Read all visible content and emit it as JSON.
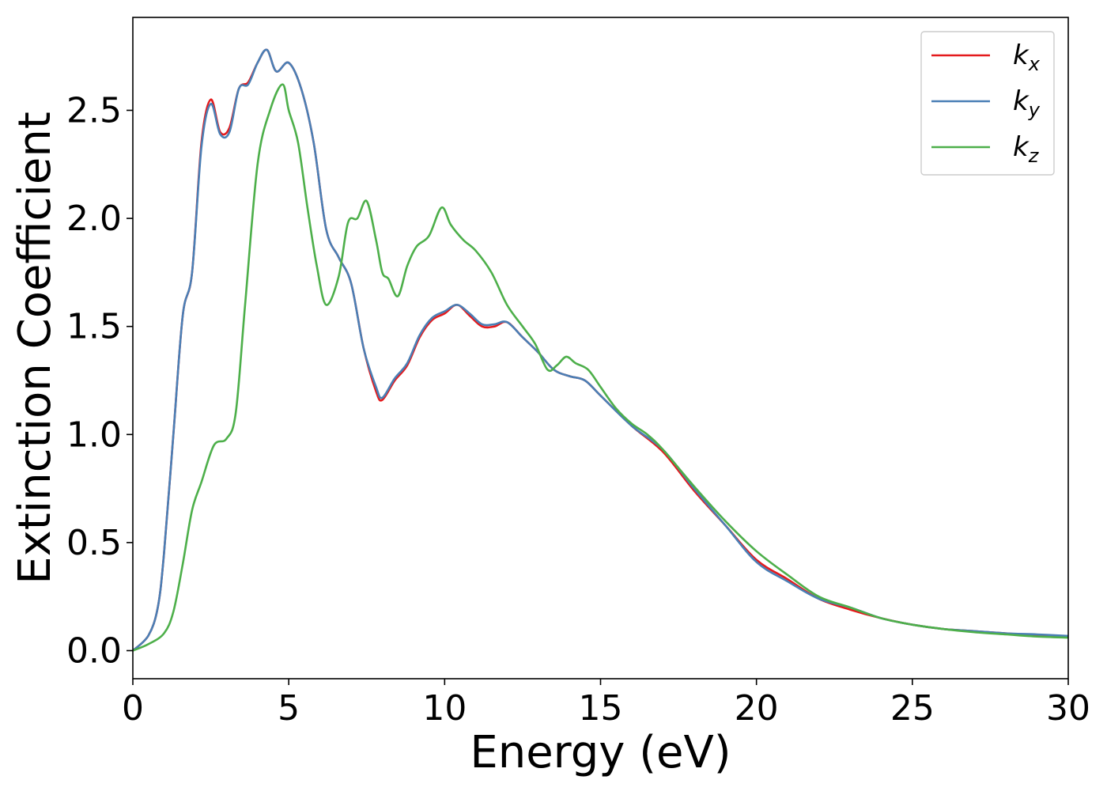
{
  "chart_data": {
    "type": "line",
    "title": "",
    "xlabel": "Energy (eV)",
    "ylabel": "Extinction Coefficient",
    "xlim": [
      0,
      30
    ],
    "ylim": [
      -0.13,
      2.93
    ],
    "xticks": [
      0,
      5,
      10,
      15,
      20,
      25,
      30
    ],
    "yticks": [
      0.0,
      0.5,
      1.0,
      1.5,
      2.0,
      2.5
    ],
    "grid": false,
    "legend_position": "top-right",
    "series": [
      {
        "name": "k",
        "subscript": "x",
        "color": "#e41a1c",
        "x": [
          0,
          0.5,
          0.8,
          1.0,
          1.3,
          1.6,
          1.9,
          2.2,
          2.5,
          2.8,
          3.1,
          3.4,
          3.7,
          4.0,
          4.3,
          4.6,
          5.0,
          5.4,
          5.8,
          6.2,
          6.6,
          7.0,
          7.4,
          7.8,
          8.0,
          8.4,
          8.8,
          9.2,
          9.6,
          10.0,
          10.4,
          10.8,
          11.2,
          11.6,
          12.0,
          12.5,
          13.0,
          13.5,
          14.0,
          14.5,
          15.0,
          16.0,
          17.0,
          18.0,
          19.0,
          20.0,
          21.0,
          22.0,
          23.0,
          24.0,
          25.0,
          26.0,
          27.0,
          28.0,
          29.0,
          30.0
        ],
        "y": [
          0.0,
          0.07,
          0.2,
          0.45,
          1.0,
          1.55,
          1.75,
          2.35,
          2.55,
          2.4,
          2.42,
          2.6,
          2.63,
          2.72,
          2.78,
          2.68,
          2.72,
          2.6,
          2.35,
          1.95,
          1.82,
          1.7,
          1.4,
          1.2,
          1.16,
          1.25,
          1.32,
          1.45,
          1.53,
          1.56,
          1.6,
          1.55,
          1.5,
          1.5,
          1.52,
          1.45,
          1.38,
          1.3,
          1.27,
          1.25,
          1.18,
          1.04,
          0.92,
          0.74,
          0.58,
          0.42,
          0.33,
          0.24,
          0.19,
          0.15,
          0.12,
          0.1,
          0.09,
          0.08,
          0.07,
          0.065
        ]
      },
      {
        "name": "k",
        "subscript": "y",
        "color": "#4a7fb5",
        "x": [
          0,
          0.5,
          0.8,
          1.0,
          1.3,
          1.6,
          1.9,
          2.2,
          2.5,
          2.8,
          3.1,
          3.4,
          3.7,
          4.0,
          4.3,
          4.6,
          5.0,
          5.4,
          5.8,
          6.2,
          6.6,
          7.0,
          7.4,
          7.8,
          8.0,
          8.4,
          8.8,
          9.2,
          9.6,
          10.0,
          10.4,
          10.8,
          11.2,
          11.6,
          12.0,
          12.5,
          13.0,
          13.5,
          14.0,
          14.5,
          15.0,
          16.0,
          17.0,
          18.0,
          19.0,
          20.0,
          21.0,
          22.0,
          23.0,
          24.0,
          25.0,
          26.0,
          27.0,
          28.0,
          29.0,
          30.0
        ],
        "y": [
          0.0,
          0.07,
          0.2,
          0.45,
          1.0,
          1.55,
          1.75,
          2.33,
          2.53,
          2.39,
          2.4,
          2.6,
          2.62,
          2.72,
          2.78,
          2.68,
          2.72,
          2.6,
          2.35,
          1.95,
          1.82,
          1.7,
          1.4,
          1.22,
          1.17,
          1.26,
          1.33,
          1.46,
          1.54,
          1.57,
          1.6,
          1.56,
          1.51,
          1.51,
          1.52,
          1.45,
          1.38,
          1.3,
          1.27,
          1.25,
          1.18,
          1.04,
          0.93,
          0.75,
          0.58,
          0.41,
          0.32,
          0.24,
          0.2,
          0.15,
          0.12,
          0.1,
          0.09,
          0.08,
          0.075,
          0.068
        ]
      },
      {
        "name": "k",
        "subscript": "z",
        "color": "#4daf4a",
        "x": [
          0,
          0.5,
          1.0,
          1.3,
          1.6,
          1.9,
          2.2,
          2.6,
          3.0,
          3.3,
          3.6,
          4.0,
          4.4,
          4.8,
          5.0,
          5.3,
          5.6,
          5.9,
          6.2,
          6.6,
          6.9,
          7.2,
          7.5,
          7.8,
          8.0,
          8.2,
          8.5,
          8.8,
          9.1,
          9.5,
          9.9,
          10.2,
          10.6,
          11.0,
          11.5,
          12.0,
          12.5,
          12.9,
          13.3,
          13.6,
          13.9,
          14.2,
          14.6,
          15.0,
          15.5,
          16.0,
          16.5,
          17.0,
          18.0,
          19.0,
          20.0,
          21.0,
          22.0,
          23.0,
          24.0,
          25.0,
          26.0,
          27.0,
          28.0,
          29.0,
          30.0
        ],
        "y": [
          0.0,
          0.03,
          0.08,
          0.18,
          0.4,
          0.65,
          0.78,
          0.95,
          0.98,
          1.1,
          1.6,
          2.25,
          2.5,
          2.62,
          2.5,
          2.35,
          2.05,
          1.78,
          1.6,
          1.73,
          1.98,
          2.0,
          2.08,
          1.9,
          1.75,
          1.72,
          1.64,
          1.78,
          1.87,
          1.92,
          2.05,
          1.97,
          1.9,
          1.85,
          1.75,
          1.6,
          1.5,
          1.42,
          1.3,
          1.32,
          1.36,
          1.33,
          1.3,
          1.22,
          1.12,
          1.05,
          1.0,
          0.93,
          0.76,
          0.6,
          0.46,
          0.35,
          0.25,
          0.2,
          0.15,
          0.12,
          0.1,
          0.085,
          0.075,
          0.065,
          0.06
        ]
      }
    ]
  }
}
